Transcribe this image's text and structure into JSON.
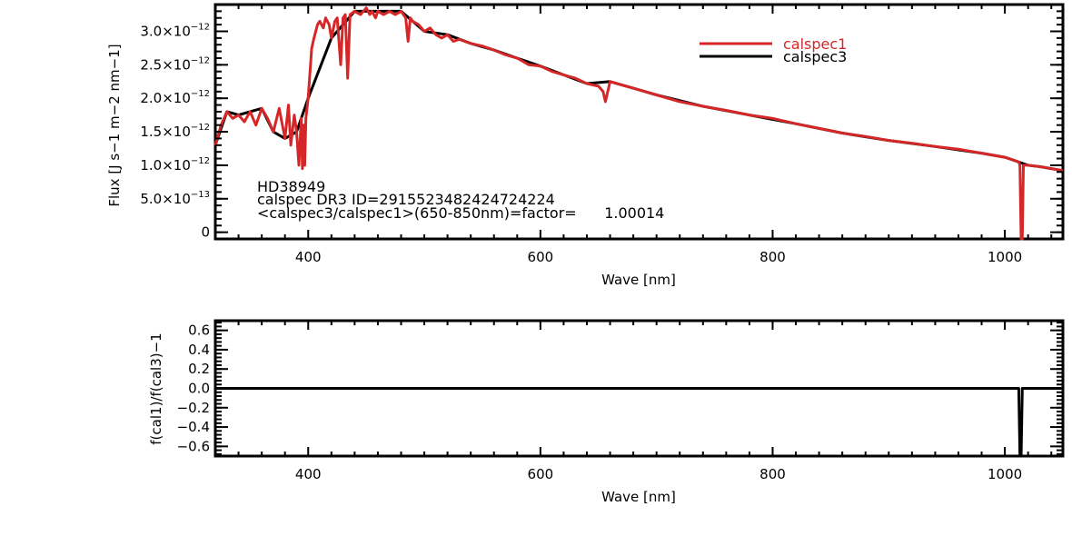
{
  "chart_data": [
    {
      "type": "line",
      "xlabel": "Wave [nm]",
      "ylabel": "Flux [J s−1 m−2 nm−1]",
      "xlim": [
        320,
        1050
      ],
      "ylim": [
        -1e-13,
        3.4e-12
      ],
      "x_ticks": [
        {
          "value": 400,
          "label": "400"
        },
        {
          "value": 600,
          "label": "600"
        },
        {
          "value": 800,
          "label": "800"
        },
        {
          "value": 1000,
          "label": "1000"
        }
      ],
      "y_ticks": [
        {
          "value": 0,
          "mantissa": "0",
          "exponent": ""
        },
        {
          "value": 5e-13,
          "mantissa": "5.0×10",
          "exponent": "−13"
        },
        {
          "value": 1e-12,
          "mantissa": "1.0×10",
          "exponent": "−12"
        },
        {
          "value": 1.5e-12,
          "mantissa": "1.5×10",
          "exponent": "−12"
        },
        {
          "value": 2e-12,
          "mantissa": "2.0×10",
          "exponent": "−12"
        },
        {
          "value": 2.5e-12,
          "mantissa": "2.5×10",
          "exponent": "−12"
        },
        {
          "value": 3e-12,
          "mantissa": "3.0×10",
          "exponent": "−12"
        }
      ],
      "annotations": [
        "HD38949",
        "calspec DR3 ID=2915523482424724224",
        "<calspec3/calspec1>(650-850nm)=factor=      1.00014"
      ],
      "legend_position": "top-right",
      "series": [
        {
          "name": "calspec1",
          "color": "#d62728",
          "x": [
            320,
            325,
            330,
            335,
            340,
            345,
            350,
            355,
            360,
            365,
            370,
            375,
            380,
            383,
            385,
            388,
            390,
            392,
            394,
            395,
            396,
            397,
            398,
            400,
            403,
            405,
            408,
            410,
            413,
            415,
            418,
            420,
            423,
            425,
            428,
            430,
            432,
            434,
            436,
            440,
            445,
            450,
            453,
            455,
            458,
            460,
            465,
            470,
            475,
            480,
            484,
            486,
            488,
            490,
            495,
            500,
            505,
            510,
            515,
            520,
            525,
            530,
            540,
            550,
            560,
            570,
            580,
            590,
            600,
            610,
            620,
            630,
            640,
            650,
            654,
            656,
            658,
            660,
            670,
            680,
            690,
            700,
            720,
            740,
            760,
            780,
            800,
            820,
            840,
            860,
            880,
            900,
            920,
            940,
            960,
            980,
            1000,
            1012,
            1013,
            1014,
            1015,
            1016,
            1020,
            1030,
            1040,
            1050
          ],
          "y": [
            1.3e-12,
            1.6e-12,
            1.8e-12,
            1.7e-12,
            1.75e-12,
            1.65e-12,
            1.8e-12,
            1.6e-12,
            1.85e-12,
            1.7e-12,
            1.5e-12,
            1.85e-12,
            1.4e-12,
            1.9e-12,
            1.3e-12,
            1.75e-12,
            1.5e-12,
            1e-12,
            1.7e-12,
            9.5e-13,
            1.6e-12,
            1e-12,
            1.7e-12,
            2e-12,
            2.75e-12,
            2.9e-12,
            3.1e-12,
            3.15e-12,
            3.05e-12,
            3.2e-12,
            3.1e-12,
            2.9e-12,
            3.15e-12,
            3.2e-12,
            2.5e-12,
            3.2e-12,
            3.25e-12,
            2.3e-12,
            3.25e-12,
            3.3e-12,
            3.25e-12,
            3.35e-12,
            3.25e-12,
            3.3e-12,
            3.2e-12,
            3.3e-12,
            3.25e-12,
            3.3e-12,
            3.25e-12,
            3.3e-12,
            3.2e-12,
            2.85e-12,
            3.2e-12,
            3.15e-12,
            3.1e-12,
            3e-12,
            3.05e-12,
            2.95e-12,
            2.9e-12,
            2.95e-12,
            2.85e-12,
            2.88e-12,
            2.82e-12,
            2.78e-12,
            2.72e-12,
            2.65e-12,
            2.6e-12,
            2.5e-12,
            2.48e-12,
            2.4e-12,
            2.35e-12,
            2.3e-12,
            2.22e-12,
            2.18e-12,
            2.1e-12,
            1.95e-12,
            2.1e-12,
            2.25e-12,
            2.2e-12,
            2.15e-12,
            2.1e-12,
            2.05e-12,
            1.95e-12,
            1.88e-12,
            1.82e-12,
            1.75e-12,
            1.7e-12,
            1.62e-12,
            1.55e-12,
            1.48e-12,
            1.43e-12,
            1.37e-12,
            1.33e-12,
            1.28e-12,
            1.24e-12,
            1.18e-12,
            1.12e-12,
            1.05e-12,
            1e-12,
            -1e-13,
            -1e-13,
            1e-12,
            1e-12,
            9.8e-13,
            9.5e-13,
            9.2e-13
          ]
        },
        {
          "name": "calspec3",
          "color": "#000000",
          "x": [
            320,
            330,
            340,
            350,
            360,
            370,
            380,
            390,
            400,
            420,
            440,
            460,
            480,
            500,
            520,
            540,
            560,
            580,
            600,
            620,
            640,
            660,
            680,
            700,
            740,
            780,
            820,
            860,
            900,
            940,
            980,
            1000,
            1010,
            1020,
            1030,
            1040,
            1050
          ],
          "y": [
            1.3e-12,
            1.8e-12,
            1.75e-12,
            1.8e-12,
            1.85e-12,
            1.5e-12,
            1.4e-12,
            1.5e-12,
            2e-12,
            2.9e-12,
            3.3e-12,
            3.3e-12,
            3.3e-12,
            3e-12,
            2.95e-12,
            2.82e-12,
            2.72e-12,
            2.6e-12,
            2.48e-12,
            2.35e-12,
            2.22e-12,
            2.25e-12,
            2.15e-12,
            2.05e-12,
            1.88e-12,
            1.75e-12,
            1.62e-12,
            1.48e-12,
            1.37e-12,
            1.28e-12,
            1.18e-12,
            1.12e-12,
            1.06e-12,
            1e-12,
            9.8e-13,
            9.5e-13,
            9.2e-13
          ]
        }
      ]
    },
    {
      "type": "line",
      "xlabel": "Wave [nm]",
      "ylabel": "f(cal1)/f(cal3)−1",
      "xlim": [
        320,
        1050
      ],
      "ylim": [
        -0.7,
        0.7
      ],
      "x_ticks": [
        {
          "value": 400,
          "label": "400"
        },
        {
          "value": 600,
          "label": "600"
        },
        {
          "value": 800,
          "label": "800"
        },
        {
          "value": 1000,
          "label": "1000"
        }
      ],
      "y_ticks": [
        {
          "value": 0.6,
          "label": "0.6"
        },
        {
          "value": 0.4,
          "label": "0.4"
        },
        {
          "value": 0.2,
          "label": "0.2"
        },
        {
          "value": 0.0,
          "label": "0.0"
        },
        {
          "value": -0.2,
          "label": "−0.2"
        },
        {
          "value": -0.4,
          "label": "−0.4"
        },
        {
          "value": -0.6,
          "label": "−0.6"
        }
      ],
      "series": [
        {
          "color": "#000000",
          "x": [
            320,
            400,
            500,
            600,
            700,
            800,
            900,
            1000,
            1012,
            1013,
            1014,
            1015,
            1016,
            1020,
            1050
          ],
          "y": [
            0,
            0,
            0,
            0,
            0,
            0,
            0,
            0,
            0,
            -0.7,
            -0.7,
            0,
            0,
            0,
            0
          ]
        }
      ]
    }
  ]
}
